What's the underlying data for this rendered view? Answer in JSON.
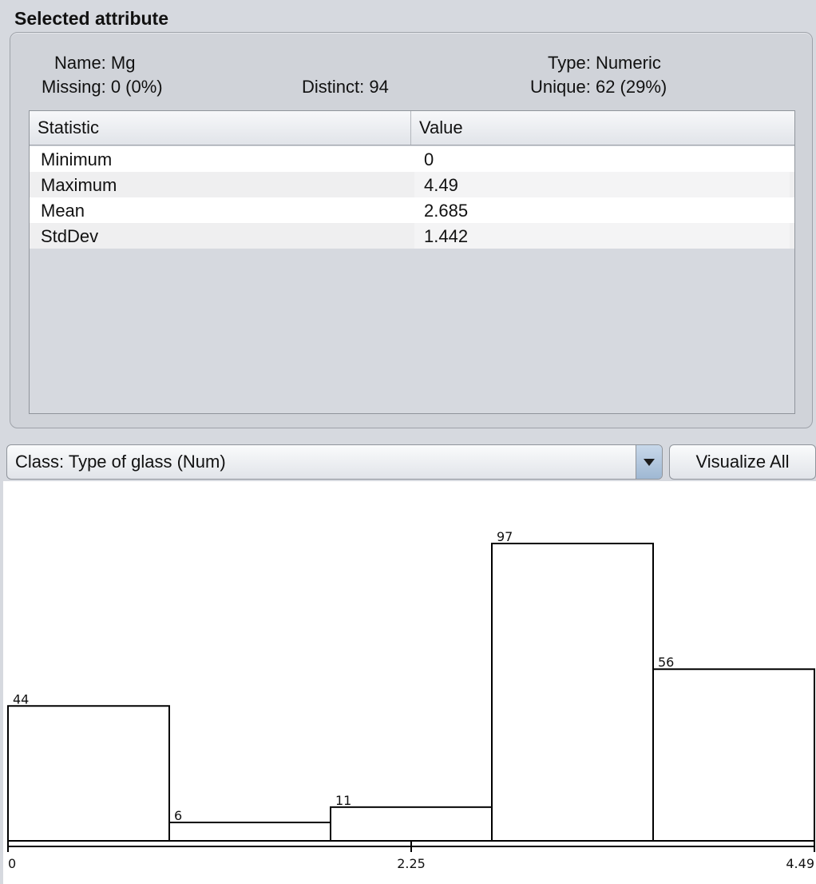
{
  "section_title": "Selected attribute",
  "attribute": {
    "name_label": "Name:",
    "name_value": "Mg",
    "missing_label": "Missing:",
    "missing_value": "0 (0%)",
    "distinct_label": "Distinct:",
    "distinct_value": "94",
    "type_label": "Type:",
    "type_value": "Numeric",
    "unique_label": "Unique:",
    "unique_value": "62 (29%)"
  },
  "stats_table": {
    "headers": [
      "Statistic",
      "Value"
    ],
    "rows": [
      {
        "statistic": "Minimum",
        "value": "0"
      },
      {
        "statistic": "Maximum",
        "value": "4.49"
      },
      {
        "statistic": "Mean",
        "value": "2.685"
      },
      {
        "statistic": "StdDev",
        "value": "1.442"
      }
    ]
  },
  "class_selector": {
    "selected": "Class: Type of glass (Num)"
  },
  "visualize_all_label": "Visualize All",
  "chart_data": {
    "type": "bar",
    "title": "",
    "xlabel": "",
    "ylabel": "",
    "categories": [
      "bin1",
      "bin2",
      "bin3",
      "bin4",
      "bin5"
    ],
    "values": [
      44,
      6,
      11,
      97,
      56
    ],
    "x_range": [
      0,
      4.49
    ],
    "x_ticks": [
      "0",
      "2.25",
      "4.49"
    ],
    "ylim": [
      0,
      97
    ],
    "grid": false,
    "legend": "none",
    "bar_fill": "#ffffff",
    "bar_stroke": "#000000"
  }
}
